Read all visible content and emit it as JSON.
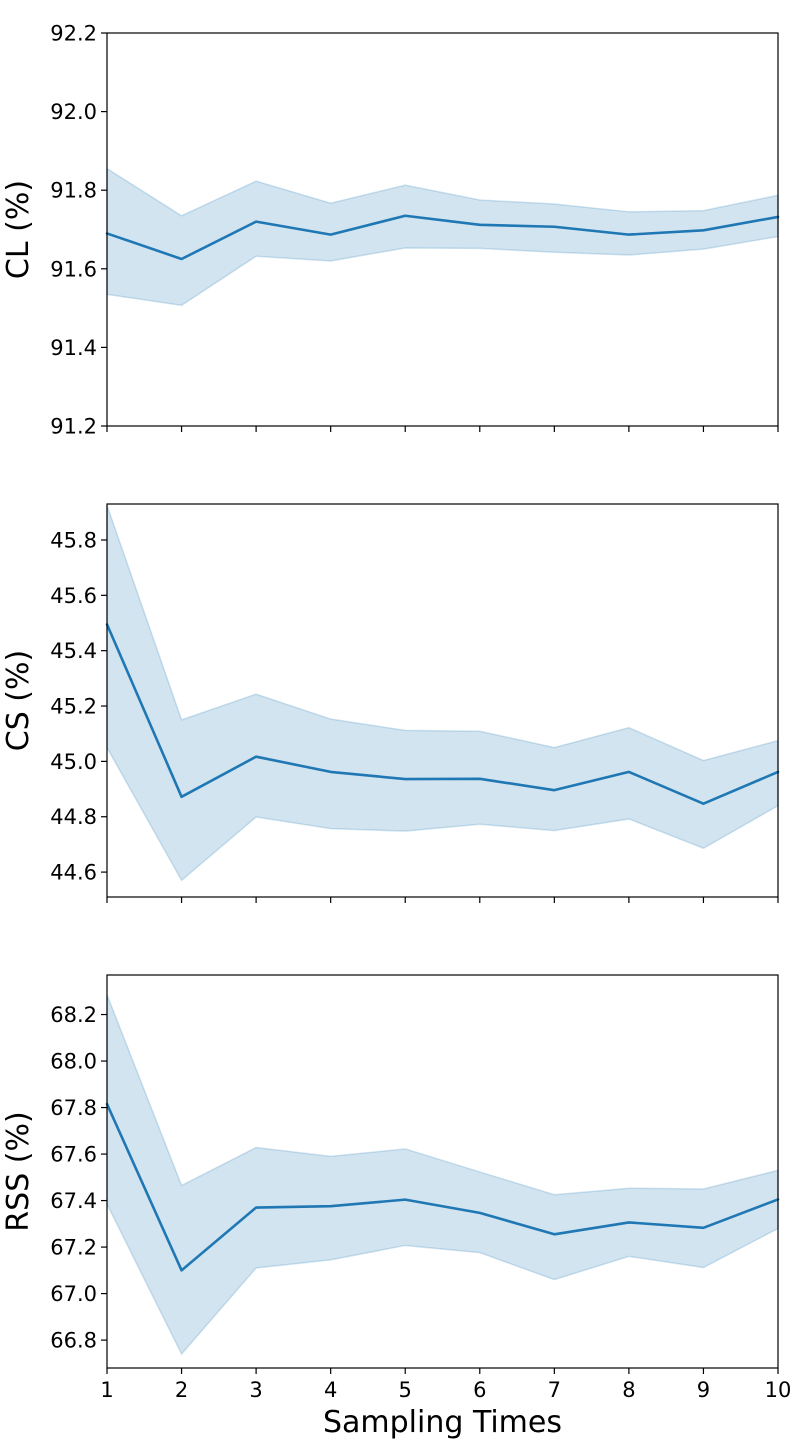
{
  "chart_data": [
    {
      "type": "line",
      "ylabel": "CL (%)",
      "xlabel": "",
      "x": [
        1,
        2,
        3,
        4,
        5,
        6,
        7,
        8,
        9,
        10
      ],
      "xlim": [
        1,
        10
      ],
      "ylim": [
        91.2,
        92.2
      ],
      "yticks": [
        91.2,
        91.4,
        91.6,
        91.8,
        92.0,
        92.2
      ],
      "ytick_labels": [
        "91.2",
        "91.4",
        "91.6",
        "91.8",
        "92.0",
        "92.2"
      ],
      "show_xtick_labels": false,
      "series": [
        {
          "values": [
            91.69,
            91.625,
            91.72,
            91.687,
            91.735,
            91.712,
            91.707,
            91.687,
            91.698,
            91.732
          ],
          "lower": [
            91.535,
            91.507,
            91.632,
            91.62,
            91.653,
            91.652,
            91.642,
            91.635,
            91.65,
            91.682
          ],
          "upper": [
            91.855,
            91.735,
            91.823,
            91.767,
            91.813,
            91.775,
            91.765,
            91.745,
            91.748,
            91.787
          ],
          "color": "#1f77b4",
          "band_color": "#1f77b4"
        }
      ],
      "grid": false,
      "legend": "none"
    },
    {
      "type": "line",
      "ylabel": "CS (%)",
      "xlabel": "",
      "x": [
        1,
        2,
        3,
        4,
        5,
        6,
        7,
        8,
        9,
        10
      ],
      "xlim": [
        1,
        10
      ],
      "ylim": [
        44.51,
        45.93
      ],
      "yticks": [
        44.6,
        44.8,
        45.0,
        45.2,
        45.4,
        45.6,
        45.8
      ],
      "ytick_labels": [
        "44.6",
        "44.8",
        "45.0",
        "45.2",
        "45.4",
        "45.6",
        "45.8"
      ],
      "show_xtick_labels": false,
      "series": [
        {
          "values": [
            45.495,
            44.872,
            45.017,
            44.962,
            44.936,
            44.937,
            44.896,
            44.962,
            44.847,
            44.962
          ],
          "lower": [
            45.05,
            44.57,
            44.799,
            44.757,
            44.748,
            44.773,
            44.75,
            44.792,
            44.686,
            44.84
          ],
          "upper": [
            45.925,
            45.15,
            45.243,
            45.153,
            45.112,
            45.109,
            45.05,
            45.122,
            45.003,
            45.075
          ],
          "color": "#1f77b4",
          "band_color": "#1f77b4"
        }
      ],
      "grid": false,
      "legend": "none"
    },
    {
      "type": "line",
      "ylabel": "RSS (%)",
      "xlabel": "Sampling Times",
      "x": [
        1,
        2,
        3,
        4,
        5,
        6,
        7,
        8,
        9,
        10
      ],
      "xlim": [
        1,
        10
      ],
      "ylim": [
        66.68,
        68.37
      ],
      "yticks": [
        66.8,
        67.0,
        67.2,
        67.4,
        67.6,
        67.8,
        68.0,
        68.2
      ],
      "ytick_labels": [
        "66.8",
        "67.0",
        "67.2",
        "67.4",
        "67.6",
        "67.8",
        "68.0",
        "68.2"
      ],
      "xticks": [
        1,
        2,
        3,
        4,
        5,
        6,
        7,
        8,
        9,
        10
      ],
      "xtick_labels": [
        "1",
        "2",
        "3",
        "4",
        "5",
        "6",
        "7",
        "8",
        "9",
        "10"
      ],
      "show_xtick_labels": true,
      "series": [
        {
          "values": [
            67.815,
            67.1,
            67.37,
            67.376,
            67.404,
            67.347,
            67.255,
            67.306,
            67.283,
            67.405
          ],
          "lower": [
            67.385,
            66.74,
            67.11,
            67.145,
            67.207,
            67.176,
            67.06,
            67.16,
            67.112,
            67.28
          ],
          "upper": [
            68.285,
            67.465,
            67.628,
            67.59,
            67.622,
            67.523,
            67.425,
            67.453,
            67.45,
            67.53
          ],
          "color": "#1f77b4",
          "band_color": "#1f77b4"
        }
      ],
      "grid": false,
      "legend": "none"
    }
  ]
}
